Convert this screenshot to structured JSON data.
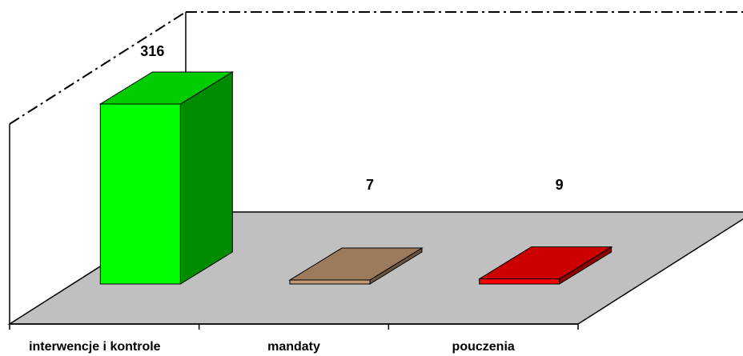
{
  "chart_data": {
    "type": "bar3d",
    "categories": [
      "interwencje i kontrole",
      "mandaty",
      "pouczenia"
    ],
    "values": [
      316,
      7,
      9
    ],
    "colors": [
      "#00ff00",
      "#c49a74",
      "#ff0000"
    ]
  }
}
